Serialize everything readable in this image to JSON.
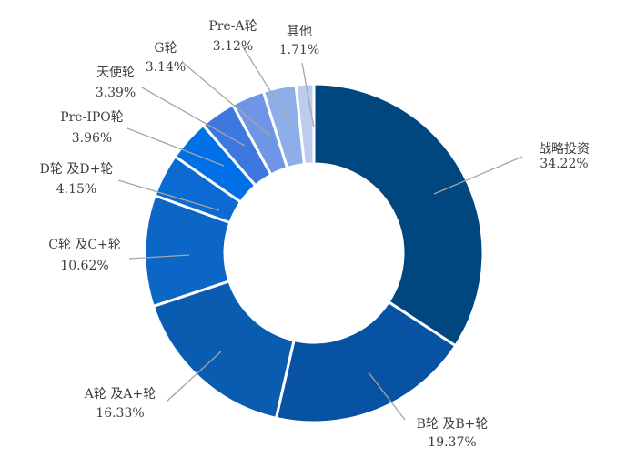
{
  "chart_data": {
    "type": "pie",
    "title": "",
    "categories": [
      "战略投资",
      "B轮及B+轮",
      "A轮及A+轮",
      "C轮及C+轮",
      "D轮及D+轮",
      "Pre-IPO轮",
      "天使轮",
      "G轮",
      "Pre-A轮",
      "其他"
    ],
    "values": [
      34.22,
      19.37,
      16.33,
      10.62,
      4.15,
      3.96,
      3.39,
      3.14,
      3.12,
      1.71
    ],
    "value_labels": [
      "34.22%",
      "19.37%",
      "16.33%",
      "10.62%",
      "4.15%",
      "3.96%",
      "3.39%",
      "3.14%",
      "3.12%",
      "1.71%"
    ],
    "label_names": [
      "战略投资",
      "B轮 及B+轮",
      "A轮 及A+轮",
      "C轮 及C+轮",
      "D轮 及D+轮",
      "Pre-IPO轮",
      "天使轮",
      "G轮",
      "Pre-A轮",
      "其他"
    ],
    "colors": [
      "#00467f",
      "#0752a2",
      "#0a5cb0",
      "#0c66c6",
      "#0b6bd3",
      "#0070e6",
      "#3d78e0",
      "#6e95e6",
      "#8eaee9",
      "#bccbee"
    ],
    "donut": true,
    "start": "12 o'clock",
    "direction": "clockwise",
    "legend": "none"
  }
}
